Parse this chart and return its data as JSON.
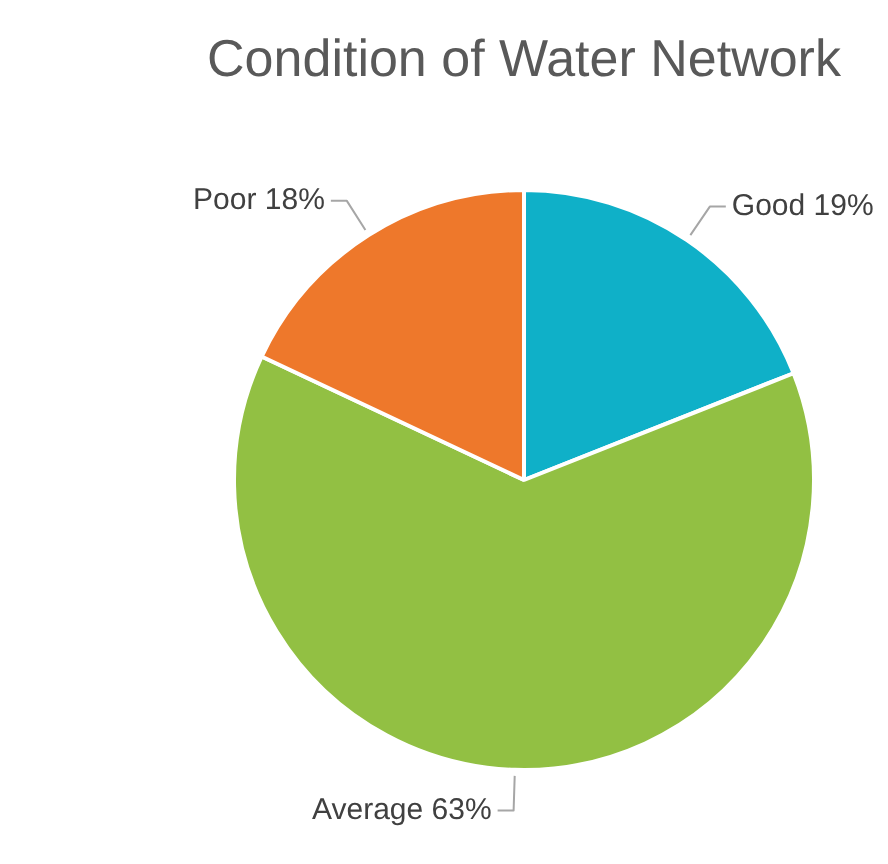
{
  "chart_data": {
    "type": "pie",
    "title": "Condition of Water Network",
    "categories": [
      "Good",
      "Average",
      "Poor"
    ],
    "values": [
      19,
      63,
      18
    ],
    "value_labels": [
      "19%",
      "63%",
      "18%"
    ],
    "colors": [
      "#0fb0c8",
      "#92c043",
      "#ee782b"
    ]
  }
}
